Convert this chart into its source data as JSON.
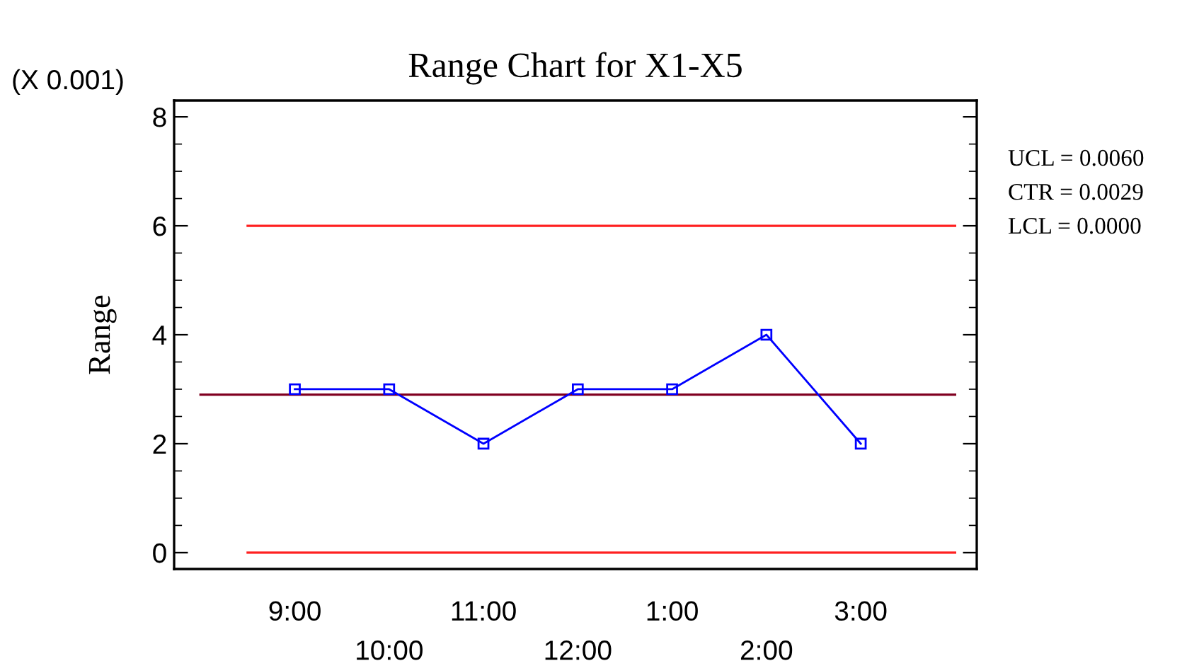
{
  "chart_data": {
    "type": "line",
    "title": "Range Chart for X1-X5",
    "ylabel": "Range",
    "annotations": [
      "(X 0.001)",
      "UCL = 0.0060",
      "CTR = 0.0029",
      "LCL = 0.0000"
    ],
    "categories": [
      "9:00",
      "10:00",
      "11:00",
      "12:00",
      "1:00",
      "2:00",
      "3:00"
    ],
    "series": [
      {
        "color": "#0000ff",
        "values": [
          3,
          3,
          2,
          3,
          3,
          4,
          2
        ]
      }
    ],
    "marker": "square",
    "line_style": "solid",
    "ylim": [
      -0.3,
      8.3
    ],
    "yticks": [
      0,
      2,
      4,
      6,
      8
    ],
    "ref_lines": [
      {
        "axis": "y",
        "value": 6.0,
        "color": "#ff2020"
      },
      {
        "axis": "y",
        "value": 2.9,
        "color": "#800020"
      },
      {
        "axis": "y",
        "value": 0,
        "color": "#ff2020"
      }
    ],
    "grid": false,
    "legend": false
  }
}
